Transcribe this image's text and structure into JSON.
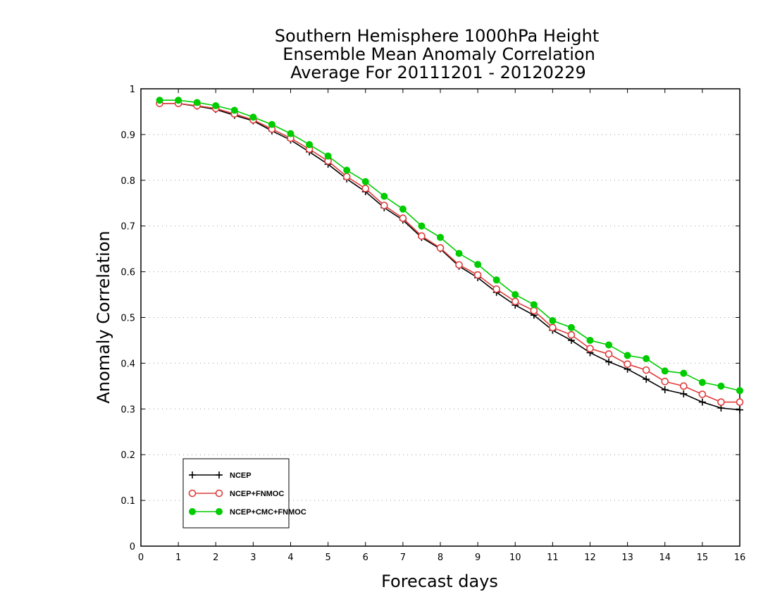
{
  "chart_data": {
    "type": "line",
    "title": [
      "Southern Hemisphere 1000hPa Height",
      "Ensemble Mean Anomaly Correlation",
      "Average For 20111201 - 20120229"
    ],
    "xlabel": "Forecast days",
    "ylabel": "Anomaly Correlation",
    "xlim": [
      0,
      16
    ],
    "ylim": [
      0,
      1
    ],
    "xticks": [
      0,
      1,
      2,
      3,
      4,
      5,
      6,
      7,
      8,
      9,
      10,
      11,
      12,
      13,
      14,
      15,
      16
    ],
    "yticks": [
      0,
      0.1,
      0.2,
      0.3,
      0.4,
      0.5,
      0.6,
      0.7,
      0.8,
      0.9,
      1
    ],
    "xtick_labels": [
      "0",
      "1",
      "2",
      "3",
      "4",
      "5",
      "6",
      "7",
      "8",
      "9",
      "10",
      "11",
      "12",
      "13",
      "14",
      "15",
      "16"
    ],
    "ytick_labels": [
      "0",
      "0.1",
      "0.2",
      "0.3",
      "0.4",
      "0.5",
      "0.6",
      "0.7",
      "0.8",
      "0.9",
      "1"
    ],
    "grid": "horizontal-dotted",
    "legend_position": "bottom-left",
    "x": [
      0.5,
      1,
      1.5,
      2,
      2.5,
      3,
      3.5,
      4,
      4.5,
      5,
      5.5,
      6,
      6.5,
      7,
      7.5,
      8,
      8.5,
      9,
      9.5,
      10,
      10.5,
      11,
      11.5,
      12,
      12.5,
      13,
      13.5,
      14,
      14.5,
      15,
      15.5,
      16
    ],
    "series": [
      {
        "name": "NCEP",
        "color": "#000000",
        "marker": "plus",
        "values": [
          0.968,
          0.968,
          0.962,
          0.955,
          0.942,
          0.93,
          0.908,
          0.888,
          0.862,
          0.835,
          0.803,
          0.775,
          0.74,
          0.713,
          0.675,
          0.65,
          0.612,
          0.587,
          0.555,
          0.527,
          0.505,
          0.472,
          0.45,
          0.423,
          0.403,
          0.387,
          0.365,
          0.342,
          0.333,
          0.315,
          0.302,
          0.298
        ]
      },
      {
        "name": "NCEP+FNMOC",
        "color": "#e03c3c",
        "marker": "open-circle",
        "values": [
          0.968,
          0.968,
          0.963,
          0.957,
          0.945,
          0.932,
          0.912,
          0.892,
          0.868,
          0.842,
          0.808,
          0.782,
          0.745,
          0.717,
          0.678,
          0.652,
          0.615,
          0.593,
          0.562,
          0.535,
          0.515,
          0.478,
          0.462,
          0.432,
          0.42,
          0.398,
          0.385,
          0.36,
          0.35,
          0.332,
          0.315,
          0.315
        ]
      },
      {
        "name": "NCEP+CMC+FNMOC",
        "color": "#00cc00",
        "marker": "filled-circle",
        "values": [
          0.975,
          0.975,
          0.97,
          0.963,
          0.953,
          0.938,
          0.922,
          0.902,
          0.878,
          0.853,
          0.822,
          0.797,
          0.765,
          0.737,
          0.7,
          0.675,
          0.64,
          0.616,
          0.582,
          0.55,
          0.528,
          0.493,
          0.478,
          0.45,
          0.44,
          0.417,
          0.41,
          0.383,
          0.378,
          0.358,
          0.35,
          0.34
        ]
      }
    ]
  }
}
